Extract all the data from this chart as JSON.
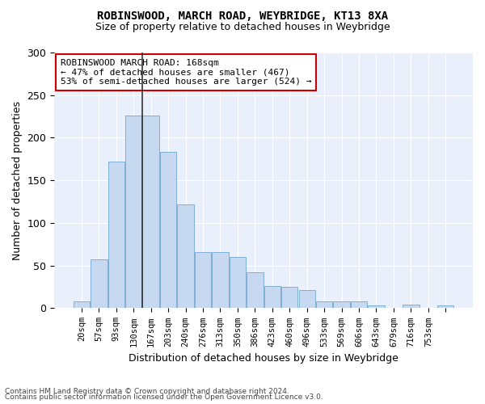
{
  "title1": "ROBINSWOOD, MARCH ROAD, WEYBRIDGE, KT13 8XA",
  "title2": "Size of property relative to detached houses in Weybridge",
  "xlabel": "Distribution of detached houses by size in Weybridge",
  "ylabel": "Number of detached properties",
  "bar_values": [
    8,
    57,
    172,
    226,
    226,
    183,
    122,
    66,
    66,
    60,
    42,
    26,
    25,
    21,
    8,
    8,
    8,
    3,
    0,
    4,
    0,
    3
  ],
  "x_tick_labels": [
    "20sqm",
    "57sqm",
    "93sqm",
    "130sqm",
    "167sqm",
    "203sqm",
    "240sqm",
    "276sqm",
    "313sqm",
    "350sqm",
    "386sqm",
    "423sqm",
    "460sqm",
    "496sqm",
    "533sqm",
    "569sqm",
    "606sqm",
    "643sqm",
    "679sqm",
    "716sqm",
    "753sqm",
    ""
  ],
  "bar_color": "#c6d9f0",
  "bar_edge_color": "#7eafd4",
  "annotation_line1": "ROBINSWOOD MARCH ROAD: 168sqm",
  "annotation_line2": "← 47% of detached houses are smaller (467)",
  "annotation_line3": "53% of semi-detached houses are larger (524) →",
  "annotation_box_color": "#ffffff",
  "annotation_box_edgecolor": "#cc0000",
  "vline_color": "#333333",
  "vline_x": 3.5,
  "ylim": [
    0,
    300
  ],
  "yticks": [
    0,
    50,
    100,
    150,
    200,
    250,
    300
  ],
  "bg_color": "#eaf0fb",
  "footer1": "Contains HM Land Registry data © Crown copyright and database right 2024.",
  "footer2": "Contains public sector information licensed under the Open Government Licence v3.0."
}
